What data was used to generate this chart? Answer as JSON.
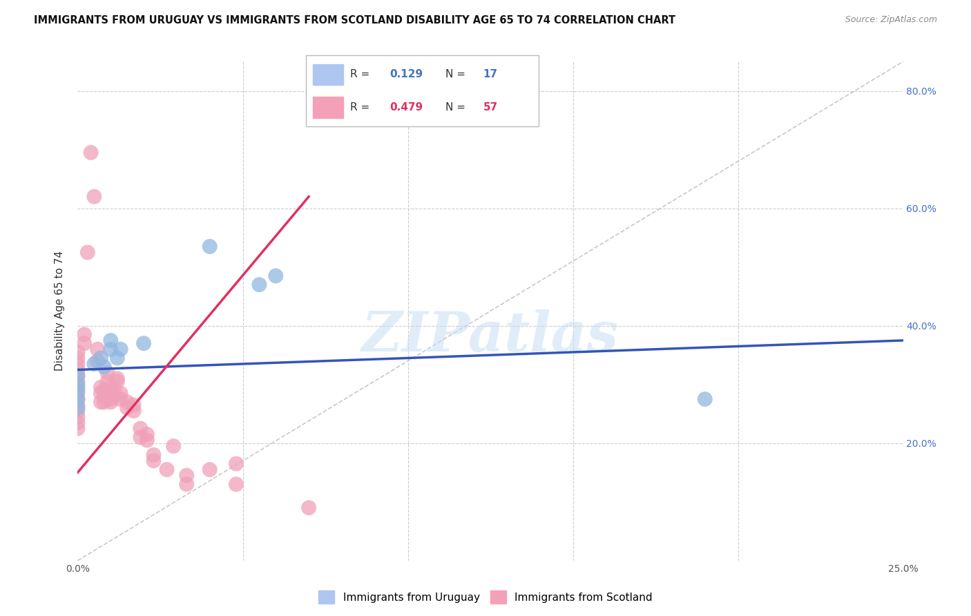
{
  "title": "IMMIGRANTS FROM URUGUAY VS IMMIGRANTS FROM SCOTLAND DISABILITY AGE 65 TO 74 CORRELATION CHART",
  "source": "Source: ZipAtlas.com",
  "ylabel": "Disability Age 65 to 74",
  "xlim": [
    0.0,
    0.25
  ],
  "ylim": [
    0.0,
    0.85
  ],
  "watermark_text": "ZIPatlas",
  "watermark_color": "#c8dff5",
  "uruguay_color": "#90b8e0",
  "scotland_color": "#f0a0b8",
  "uruguay_line_color": "#3355bb",
  "scotland_line_color": "#e03060",
  "diagonal_color": "#c8c8c8",
  "background_color": "#ffffff",
  "grid_color": "#cccccc",
  "uruguay_R": 0.129,
  "uruguay_N": 17,
  "scotland_R": 0.479,
  "scotland_N": 57,
  "uruguay_line_x0": 0.0,
  "uruguay_line_y0": 0.325,
  "uruguay_line_x1": 0.25,
  "uruguay_line_y1": 0.375,
  "scotland_line_x0": 0.0,
  "scotland_line_y0": 0.15,
  "scotland_line_x1": 0.07,
  "scotland_line_y1": 0.62,
  "uruguay_points": [
    [
      0.0,
      0.275
    ],
    [
      0.0,
      0.29
    ],
    [
      0.0,
      0.3
    ],
    [
      0.0,
      0.315
    ],
    [
      0.005,
      0.335
    ],
    [
      0.007,
      0.345
    ],
    [
      0.008,
      0.33
    ],
    [
      0.01,
      0.36
    ],
    [
      0.01,
      0.375
    ],
    [
      0.012,
      0.345
    ],
    [
      0.013,
      0.36
    ],
    [
      0.02,
      0.37
    ],
    [
      0.04,
      0.535
    ],
    [
      0.055,
      0.47
    ],
    [
      0.06,
      0.485
    ],
    [
      0.19,
      0.275
    ],
    [
      0.0,
      0.26
    ]
  ],
  "scotland_points": [
    [
      0.0,
      0.225
    ],
    [
      0.0,
      0.235
    ],
    [
      0.0,
      0.245
    ],
    [
      0.0,
      0.255
    ],
    [
      0.0,
      0.265
    ],
    [
      0.0,
      0.275
    ],
    [
      0.0,
      0.285
    ],
    [
      0.0,
      0.295
    ],
    [
      0.0,
      0.305
    ],
    [
      0.0,
      0.315
    ],
    [
      0.0,
      0.325
    ],
    [
      0.0,
      0.335
    ],
    [
      0.0,
      0.345
    ],
    [
      0.0,
      0.355
    ],
    [
      0.002,
      0.37
    ],
    [
      0.002,
      0.385
    ],
    [
      0.003,
      0.525
    ],
    [
      0.004,
      0.695
    ],
    [
      0.005,
      0.62
    ],
    [
      0.006,
      0.34
    ],
    [
      0.006,
      0.36
    ],
    [
      0.007,
      0.27
    ],
    [
      0.007,
      0.285
    ],
    [
      0.007,
      0.295
    ],
    [
      0.008,
      0.27
    ],
    [
      0.008,
      0.28
    ],
    [
      0.008,
      0.29
    ],
    [
      0.009,
      0.305
    ],
    [
      0.009,
      0.32
    ],
    [
      0.01,
      0.27
    ],
    [
      0.01,
      0.275
    ],
    [
      0.01,
      0.285
    ],
    [
      0.01,
      0.295
    ],
    [
      0.011,
      0.28
    ],
    [
      0.011,
      0.29
    ],
    [
      0.012,
      0.305
    ],
    [
      0.012,
      0.31
    ],
    [
      0.013,
      0.275
    ],
    [
      0.013,
      0.285
    ],
    [
      0.015,
      0.26
    ],
    [
      0.015,
      0.27
    ],
    [
      0.017,
      0.255
    ],
    [
      0.017,
      0.265
    ],
    [
      0.019,
      0.21
    ],
    [
      0.019,
      0.225
    ],
    [
      0.021,
      0.205
    ],
    [
      0.021,
      0.215
    ],
    [
      0.023,
      0.17
    ],
    [
      0.023,
      0.18
    ],
    [
      0.027,
      0.155
    ],
    [
      0.029,
      0.195
    ],
    [
      0.033,
      0.13
    ],
    [
      0.033,
      0.145
    ],
    [
      0.04,
      0.155
    ],
    [
      0.048,
      0.165
    ],
    [
      0.048,
      0.13
    ],
    [
      0.07,
      0.09
    ]
  ]
}
